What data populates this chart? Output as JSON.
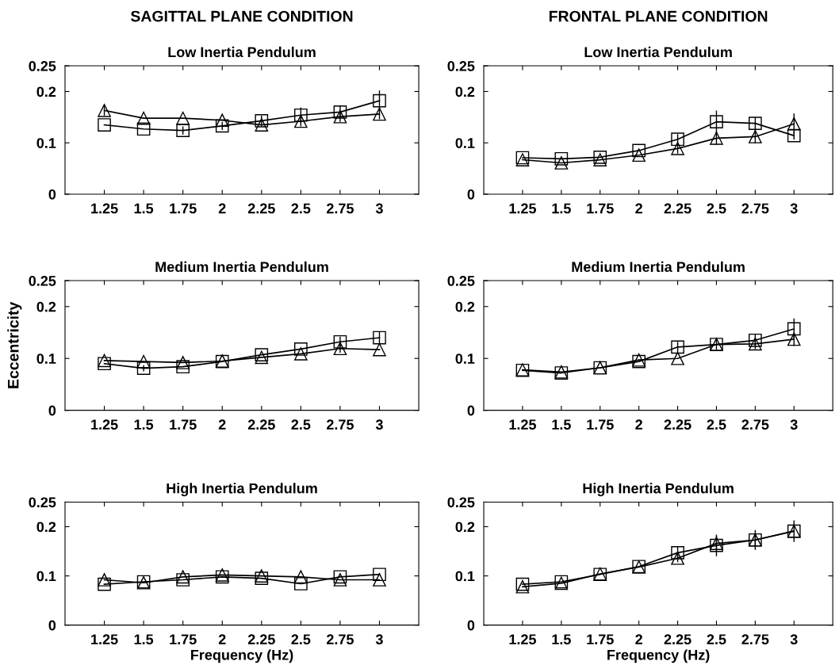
{
  "chart_data": [
    {
      "type": "line",
      "title": "Low Inertia Pendulum",
      "annotations": [
        "SAGITTAL PLANE CONDITION"
      ],
      "x": [
        1.25,
        1.5,
        1.75,
        2,
        2.25,
        2.5,
        2.75,
        3
      ],
      "xlim": [
        1,
        3.25
      ],
      "xticks": [
        1.25,
        1.5,
        1.75,
        2,
        2.25,
        2.5,
        2.75,
        3
      ],
      "ylim": [
        0,
        0.25
      ],
      "yticks": [
        0,
        0.1,
        0.2,
        0.25
      ],
      "grid": false,
      "series": [
        {
          "color": "#000000",
          "marker": "triangle",
          "values": [
            0.163,
            0.148,
            0.148,
            0.144,
            0.135,
            0.142,
            0.151,
            0.156
          ],
          "errors": [
            0.01,
            null,
            null,
            null,
            null,
            0.01,
            0.01,
            0.01
          ]
        },
        {
          "color": "#000000",
          "marker": "square",
          "values": [
            0.135,
            0.127,
            0.124,
            0.133,
            0.143,
            0.154,
            0.16,
            0.182
          ],
          "errors": [
            null,
            null,
            0.008,
            0.008,
            0.01,
            0.015,
            0.012,
            0.02
          ]
        }
      ]
    },
    {
      "type": "line",
      "title": "Low Inertia Pendulum",
      "annotations": [
        "FRONTAL PLANE CONDITION"
      ],
      "x": [
        1.25,
        1.5,
        1.75,
        2,
        2.25,
        2.5,
        2.75,
        3
      ],
      "xlim": [
        1,
        3.25
      ],
      "xticks": [
        1.25,
        1.5,
        1.75,
        2,
        2.25,
        2.5,
        2.75,
        3
      ],
      "ylim": [
        0,
        0.25
      ],
      "yticks": [
        0,
        0.1,
        0.2,
        0.25
      ],
      "grid": false,
      "series": [
        {
          "color": "#000000",
          "marker": "triangle",
          "values": [
            0.067,
            0.061,
            0.067,
            0.076,
            0.089,
            0.109,
            0.112,
            0.137
          ],
          "errors": [
            null,
            null,
            null,
            null,
            0.01,
            0.013,
            0.013,
            0.02
          ]
        },
        {
          "color": "#000000",
          "marker": "square",
          "values": [
            0.071,
            0.069,
            0.072,
            0.085,
            0.107,
            0.141,
            0.138,
            0.114
          ],
          "errors": [
            null,
            null,
            null,
            null,
            0.01,
            0.022,
            0.012,
            0.008
          ]
        }
      ]
    },
    {
      "type": "line",
      "title": "Medium Inertia Pendulum",
      "ylabel": "Eccentricity",
      "x": [
        1.25,
        1.5,
        1.75,
        2,
        2.25,
        2.5,
        2.75,
        3
      ],
      "xlim": [
        1,
        3.25
      ],
      "xticks": [
        1.25,
        1.5,
        1.75,
        2,
        2.25,
        2.5,
        2.75,
        3
      ],
      "ylim": [
        0,
        0.25
      ],
      "yticks": [
        0,
        0.1,
        0.2,
        0.25
      ],
      "grid": false,
      "series": [
        {
          "color": "#000000",
          "marker": "triangle",
          "values": [
            0.096,
            0.094,
            0.092,
            0.095,
            0.102,
            0.109,
            0.119,
            0.117
          ],
          "errors": [
            null,
            null,
            null,
            null,
            null,
            null,
            0.008,
            null
          ]
        },
        {
          "color": "#000000",
          "marker": "square",
          "values": [
            0.09,
            0.081,
            0.084,
            0.094,
            0.107,
            0.118,
            0.132,
            0.14
          ],
          "errors": [
            null,
            0.006,
            null,
            null,
            null,
            null,
            0.01,
            0.012
          ]
        }
      ]
    },
    {
      "type": "line",
      "title": "Medium Inertia Pendulum",
      "x": [
        1.25,
        1.5,
        1.75,
        2,
        2.25,
        2.5,
        2.75,
        3
      ],
      "xlim": [
        1,
        3.25
      ],
      "xticks": [
        1.25,
        1.5,
        1.75,
        2,
        2.25,
        2.5,
        2.75,
        3
      ],
      "ylim": [
        0,
        0.25
      ],
      "yticks": [
        0,
        0.1,
        0.2,
        0.25
      ],
      "grid": false,
      "series": [
        {
          "color": "#000000",
          "marker": "triangle",
          "values": [
            0.078,
            0.074,
            0.082,
            0.097,
            0.1,
            0.127,
            0.128,
            0.137
          ],
          "errors": [
            null,
            null,
            null,
            null,
            null,
            null,
            0.01,
            0.013
          ]
        },
        {
          "color": "#000000",
          "marker": "square",
          "values": [
            0.077,
            0.072,
            0.082,
            0.094,
            0.122,
            0.127,
            0.135,
            0.157
          ],
          "errors": [
            null,
            null,
            null,
            null,
            0.01,
            0.01,
            0.012,
            0.02
          ]
        }
      ]
    },
    {
      "type": "line",
      "title": "High Inertia Pendulum",
      "xlabel": "Frequency (Hz)",
      "x": [
        1.25,
        1.5,
        1.75,
        2,
        2.25,
        2.5,
        2.75,
        3
      ],
      "xlim": [
        1,
        3.25
      ],
      "xticks": [
        1.25,
        1.5,
        1.75,
        2,
        2.25,
        2.5,
        2.75,
        3
      ],
      "ylim": [
        0,
        0.25
      ],
      "yticks": [
        0,
        0.1,
        0.2,
        0.25
      ],
      "grid": false,
      "series": [
        {
          "color": "#000000",
          "marker": "triangle",
          "values": [
            0.092,
            0.086,
            0.098,
            0.102,
            0.1,
            0.098,
            0.092,
            0.092
          ]
        },
        {
          "color": "#000000",
          "marker": "square",
          "values": [
            0.083,
            0.088,
            0.092,
            0.098,
            0.095,
            0.084,
            0.098,
            0.103
          ]
        }
      ]
    },
    {
      "type": "line",
      "title": "High Inertia Pendulum",
      "xlabel": "Frequency (Hz)",
      "x": [
        1.25,
        1.5,
        1.75,
        2,
        2.25,
        2.5,
        2.75,
        3
      ],
      "xlim": [
        1,
        3.25
      ],
      "xticks": [
        1.25,
        1.5,
        1.75,
        2,
        2.25,
        2.5,
        2.75,
        3
      ],
      "ylim": [
        0,
        0.25
      ],
      "yticks": [
        0,
        0.1,
        0.2,
        0.25
      ],
      "grid": false,
      "series": [
        {
          "color": "#000000",
          "marker": "triangle",
          "values": [
            0.078,
            0.085,
            0.104,
            0.118,
            0.136,
            0.166,
            0.173,
            0.191
          ],
          "errors": [
            null,
            null,
            null,
            null,
            0.008,
            0.015,
            0.012,
            null
          ]
        },
        {
          "color": "#000000",
          "marker": "square",
          "values": [
            0.083,
            0.088,
            0.103,
            0.119,
            0.147,
            0.162,
            0.173,
            0.191
          ],
          "errors": [
            null,
            null,
            null,
            null,
            0.012,
            0.022,
            0.02,
            0.022
          ]
        }
      ]
    }
  ]
}
